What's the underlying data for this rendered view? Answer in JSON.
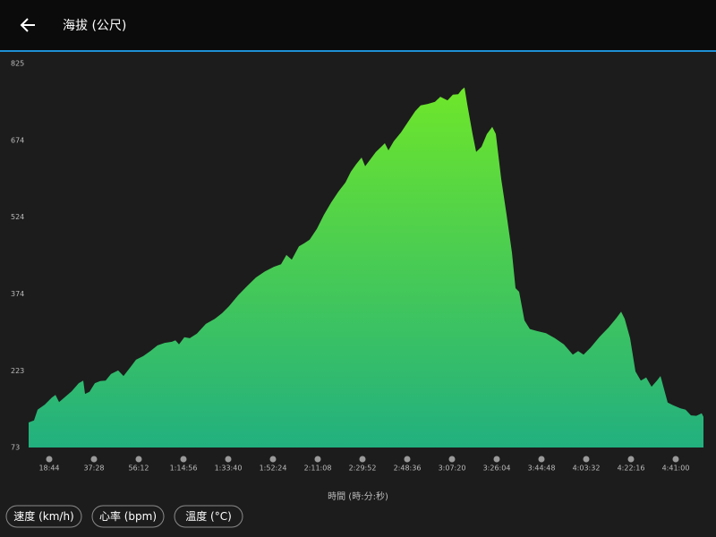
{
  "header": {
    "title": "海拔 (公尺)"
  },
  "chart_data": {
    "type": "area",
    "xlabel": "時間 (時:分:秒)",
    "gradient": [
      "#6ee62a",
      "#22b07f"
    ],
    "xlim": [
      607,
      17557
    ],
    "ylim": [
      73,
      825
    ],
    "yticks": [
      73,
      223,
      374,
      524,
      674,
      825
    ],
    "xticks": [
      {
        "value": 1124,
        "label": "18:44"
      },
      {
        "value": 2248,
        "label": "37:28"
      },
      {
        "value": 3372,
        "label": "56:12"
      },
      {
        "value": 4496,
        "label": "1:14:56"
      },
      {
        "value": 5620,
        "label": "1:33:40"
      },
      {
        "value": 6744,
        "label": "1:52:24"
      },
      {
        "value": 7868,
        "label": "2:11:08"
      },
      {
        "value": 8992,
        "label": "2:29:52"
      },
      {
        "value": 10116,
        "label": "2:48:36"
      },
      {
        "value": 11240,
        "label": "3:07:20"
      },
      {
        "value": 12364,
        "label": "3:26:04"
      },
      {
        "value": 13488,
        "label": "3:44:48"
      },
      {
        "value": 14612,
        "label": "4:03:32"
      },
      {
        "value": 15736,
        "label": "4:22:16"
      },
      {
        "value": 16860,
        "label": "4:41:00"
      }
    ],
    "x": [
      607,
      742,
      832,
      1012,
      1191,
      1281,
      1371,
      1506,
      1686,
      1866,
      1978,
      2023,
      2136,
      2270,
      2405,
      2540,
      2675,
      2855,
      2990,
      3170,
      3305,
      3484,
      3664,
      3844,
      4024,
      4204,
      4294,
      4384,
      4518,
      4653,
      4833,
      5058,
      5283,
      5463,
      5642,
      5867,
      6092,
      6317,
      6542,
      6766,
      6946,
      7081,
      7216,
      7396,
      7531,
      7666,
      7846,
      8025,
      8205,
      8385,
      8565,
      8700,
      8835,
      8970,
      9059,
      9194,
      9329,
      9464,
      9554,
      9644,
      9779,
      9959,
      10138,
      10318,
      10453,
      10633,
      10813,
      10948,
      11128,
      11262,
      11397,
      11487,
      11555,
      11622,
      11757,
      11847,
      11982,
      12117,
      12252,
      12342,
      12476,
      12611,
      12746,
      12836,
      12926,
      13061,
      13196,
      13376,
      13600,
      13825,
      14050,
      14275,
      14410,
      14545,
      14724,
      14949,
      15174,
      15354,
      15488,
      15578,
      15713,
      15848,
      15983,
      16118,
      16253,
      16387,
      16477,
      16567,
      16657,
      16792,
      16972,
      17107,
      17242,
      17377,
      17512,
      17557
    ],
    "values": [
      122,
      126,
      147,
      157,
      171,
      176,
      162,
      171,
      183,
      199,
      204,
      178,
      182,
      199,
      203,
      204,
      217,
      224,
      213,
      231,
      245,
      252,
      262,
      273,
      278,
      280,
      283,
      275,
      289,
      287,
      296,
      315,
      325,
      336,
      350,
      371,
      389,
      406,
      418,
      427,
      432,
      450,
      441,
      467,
      473,
      480,
      501,
      529,
      553,
      574,
      592,
      613,
      628,
      641,
      624,
      638,
      652,
      662,
      669,
      655,
      673,
      690,
      711,
      732,
      743,
      746,
      750,
      760,
      753,
      764,
      765,
      774,
      778,
      746,
      687,
      652,
      662,
      687,
      701,
      687,
      599,
      529,
      455,
      385,
      378,
      322,
      305,
      301,
      297,
      287,
      275,
      255,
      262,
      255,
      269,
      290,
      308,
      325,
      339,
      325,
      287,
      222,
      204,
      210,
      192,
      204,
      213,
      187,
      161,
      156,
      150,
      147,
      136,
      135,
      140,
      133
    ]
  },
  "buttons": [
    "速度 (km/h)",
    "心率 (bpm)",
    "溫度 (°C)"
  ]
}
